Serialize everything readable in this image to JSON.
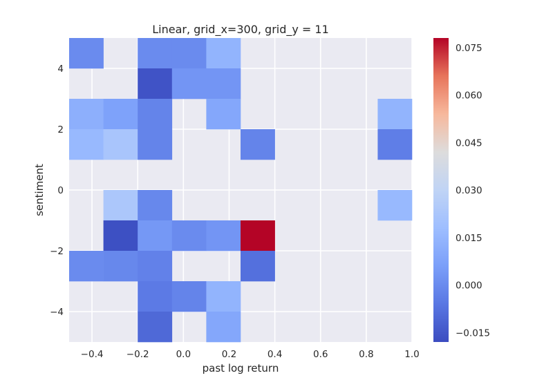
{
  "chart_data": {
    "type": "heatmap",
    "title": "Linear, grid_x=300, grid_y = 11",
    "xlabel": "past log return",
    "ylabel": "sentiment",
    "xlim": [
      -0.5,
      1.0
    ],
    "ylim": [
      -5,
      5
    ],
    "x_ticks": [
      -0.4,
      -0.2,
      0.0,
      0.2,
      0.4,
      0.6,
      0.8,
      1.0
    ],
    "x_tick_labels": [
      "−0.4",
      "−0.2",
      "0.0",
      "0.2",
      "0.4",
      "0.6",
      "0.8",
      "1.0"
    ],
    "y_ticks": [
      -4,
      -2,
      0,
      2,
      4
    ],
    "y_tick_labels": [
      "−4",
      "−2",
      "0",
      "2",
      "4"
    ],
    "x_bin_edges": [
      -0.5,
      -0.35,
      -0.2,
      -0.05,
      0.1,
      0.25,
      0.4,
      0.55,
      0.7,
      0.85,
      1.0
    ],
    "y_bin_edges": [
      -5,
      -4,
      -3,
      -2,
      -1,
      0,
      1,
      2,
      3,
      4,
      5
    ],
    "values_top_to_bottom": [
      [
        0.0,
        null,
        0.0,
        0.0,
        0.014,
        null,
        null,
        null,
        null,
        null
      ],
      [
        null,
        null,
        -0.016,
        0.003,
        0.003,
        null,
        null,
        null,
        null,
        null
      ],
      [
        0.012,
        0.007,
        -0.002,
        null,
        0.009,
        null,
        null,
        null,
        null,
        0.014
      ],
      [
        0.016,
        0.022,
        -0.002,
        null,
        null,
        -0.002,
        null,
        null,
        null,
        -0.004
      ],
      [
        null,
        null,
        null,
        null,
        null,
        null,
        null,
        null,
        null,
        null
      ],
      [
        null,
        0.023,
        -0.001,
        null,
        null,
        null,
        null,
        null,
        null,
        0.016
      ],
      [
        null,
        -0.017,
        0.004,
        0.0,
        0.003,
        0.078,
        null,
        null,
        null,
        null
      ],
      [
        0.0,
        -0.001,
        -0.003,
        null,
        null,
        -0.008,
        null,
        null,
        null,
        null
      ],
      [
        null,
        null,
        -0.005,
        -0.002,
        0.014,
        null,
        null,
        null,
        null,
        null
      ],
      [
        null,
        null,
        -0.01,
        null,
        0.009,
        null,
        null,
        null,
        null,
        null
      ]
    ],
    "colorbar": {
      "colormap": "coolwarm",
      "vmin": -0.018,
      "vmax": 0.078,
      "ticks": [
        -0.015,
        0.0,
        0.015,
        0.03,
        0.045,
        0.06,
        0.075
      ],
      "tick_labels": [
        "−0.015",
        "0.000",
        "0.015",
        "0.030",
        "0.045",
        "0.060",
        "0.075"
      ]
    },
    "background_color": "#eaeaf2",
    "grid": true,
    "grid_color": "#ffffff"
  }
}
